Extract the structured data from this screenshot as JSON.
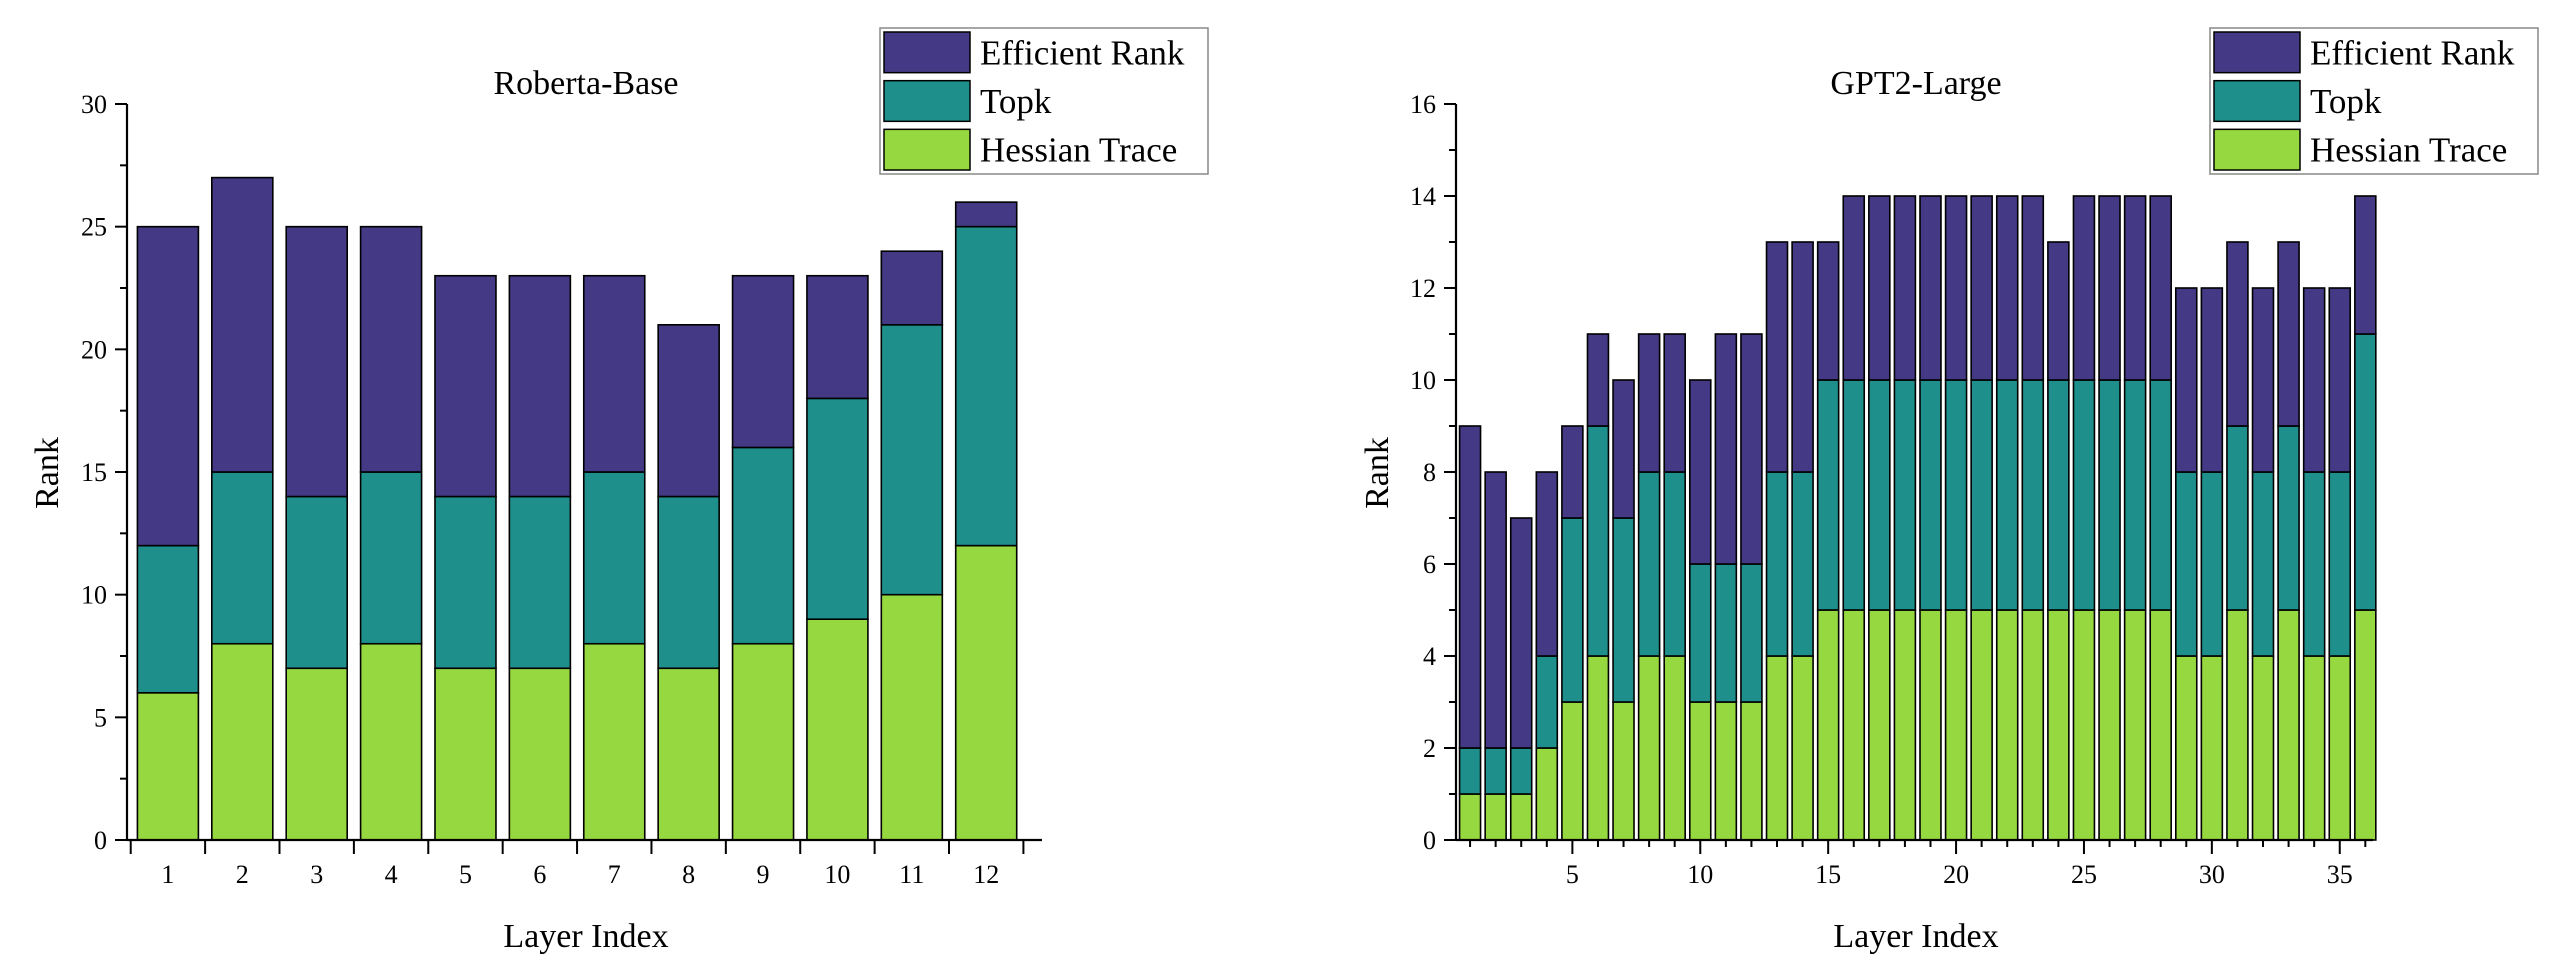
{
  "chart_data": [
    {
      "type": "bar",
      "stacked": true,
      "title": "Roberta-Base",
      "xlabel": "Layer Index",
      "ylabel": "Rank",
      "ylim": [
        0,
        30
      ],
      "yticks": [
        0,
        5,
        10,
        15,
        20,
        25,
        30
      ],
      "xlim": [
        0.45,
        12.75
      ],
      "xticks": [
        1,
        2,
        3,
        4,
        5,
        6,
        7,
        8,
        9,
        10,
        11,
        12
      ],
      "legend_position": "top-right",
      "x": [
        1,
        2,
        3,
        4,
        5,
        6,
        7,
        8,
        9,
        10,
        11,
        12
      ],
      "series": [
        {
          "name": "Hessian Trace",
          "color": "#95d840",
          "values": [
            6,
            8,
            7,
            8,
            7,
            7,
            8,
            7,
            8,
            9,
            10,
            12
          ]
        },
        {
          "name": "Topk",
          "color": "#1f8f8b",
          "values": [
            6,
            7,
            7,
            7,
            7,
            7,
            7,
            7,
            8,
            9,
            11,
            13
          ]
        },
        {
          "name": "Efficient Rank",
          "color": "#433984",
          "values": [
            13,
            12,
            11,
            10,
            9,
            9,
            8,
            7,
            7,
            5,
            3,
            1
          ]
        }
      ]
    },
    {
      "type": "bar",
      "stacked": true,
      "title": "GPT2-Large",
      "xlabel": "Layer Index",
      "ylabel": "Rank",
      "ylim": [
        0,
        16
      ],
      "yticks": [
        0,
        2,
        4,
        6,
        8,
        10,
        12,
        14,
        16
      ],
      "xlim": [
        0.45,
        36.3
      ],
      "xticks": [
        5,
        10,
        15,
        20,
        25,
        30,
        35
      ],
      "legend_position": "top-right",
      "x": [
        1,
        2,
        3,
        4,
        5,
        6,
        7,
        8,
        9,
        10,
        11,
        12,
        13,
        14,
        15,
        16,
        17,
        18,
        19,
        20,
        21,
        22,
        23,
        24,
        25,
        26,
        27,
        28,
        29,
        30,
        31,
        32,
        33,
        34,
        35,
        36
      ],
      "series": [
        {
          "name": "Hessian Trace",
          "color": "#95d840",
          "values": [
            1,
            1,
            1,
            2,
            3,
            4,
            3,
            4,
            4,
            3,
            3,
            3,
            4,
            4,
            5,
            5,
            5,
            5,
            5,
            5,
            5,
            5,
            5,
            5,
            5,
            5,
            5,
            5,
            4,
            4,
            5,
            4,
            5,
            4,
            4,
            5
          ]
        },
        {
          "name": "Topk",
          "color": "#1f8f8b",
          "values": [
            1,
            1,
            1,
            2,
            4,
            5,
            4,
            4,
            4,
            3,
            3,
            3,
            4,
            4,
            5,
            5,
            5,
            5,
            5,
            5,
            5,
            5,
            5,
            5,
            5,
            5,
            5,
            5,
            4,
            4,
            4,
            4,
            4,
            4,
            4,
            6
          ]
        },
        {
          "name": "Efficient Rank",
          "color": "#433984",
          "values": [
            7,
            6,
            5,
            4,
            2,
            2,
            3,
            3,
            3,
            4,
            5,
            5,
            5,
            5,
            3,
            4,
            4,
            4,
            4,
            4,
            4,
            4,
            4,
            3,
            4,
            4,
            4,
            4,
            4,
            4,
            4,
            4,
            4,
            4,
            4,
            3
          ]
        }
      ]
    }
  ]
}
